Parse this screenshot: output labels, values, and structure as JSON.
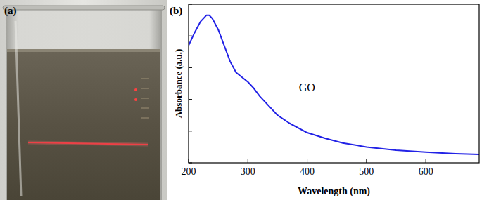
{
  "photo": {
    "label": "(a)"
  },
  "chart_data": {
    "type": "line",
    "title": "(b)",
    "xlabel": "Wavelength (nm)",
    "ylabel": "Absorbance (a.u.)",
    "x": [
      200,
      210,
      220,
      230,
      235,
      240,
      250,
      260,
      270,
      280,
      290,
      300,
      310,
      320,
      330,
      340,
      350,
      370,
      400,
      430,
      460,
      500,
      550,
      600,
      650,
      690
    ],
    "values": [
      0.74,
      0.82,
      0.89,
      0.93,
      0.93,
      0.91,
      0.84,
      0.74,
      0.64,
      0.57,
      0.54,
      0.51,
      0.47,
      0.42,
      0.38,
      0.34,
      0.3,
      0.25,
      0.19,
      0.155,
      0.125,
      0.1,
      0.08,
      0.067,
      0.058,
      0.053
    ],
    "color": "#2222e6",
    "xlim": [
      200,
      690
    ],
    "ylim": [
      0,
      1
    ],
    "xticks": [
      200,
      300,
      400,
      500,
      600
    ],
    "yticks": [
      0,
      0.2,
      0.4,
      0.6,
      0.8,
      1
    ],
    "tick_labels": "x",
    "grid": false,
    "annotations": [
      {
        "text": "GO",
        "x": 386,
        "y": 0.45
      }
    ]
  }
}
